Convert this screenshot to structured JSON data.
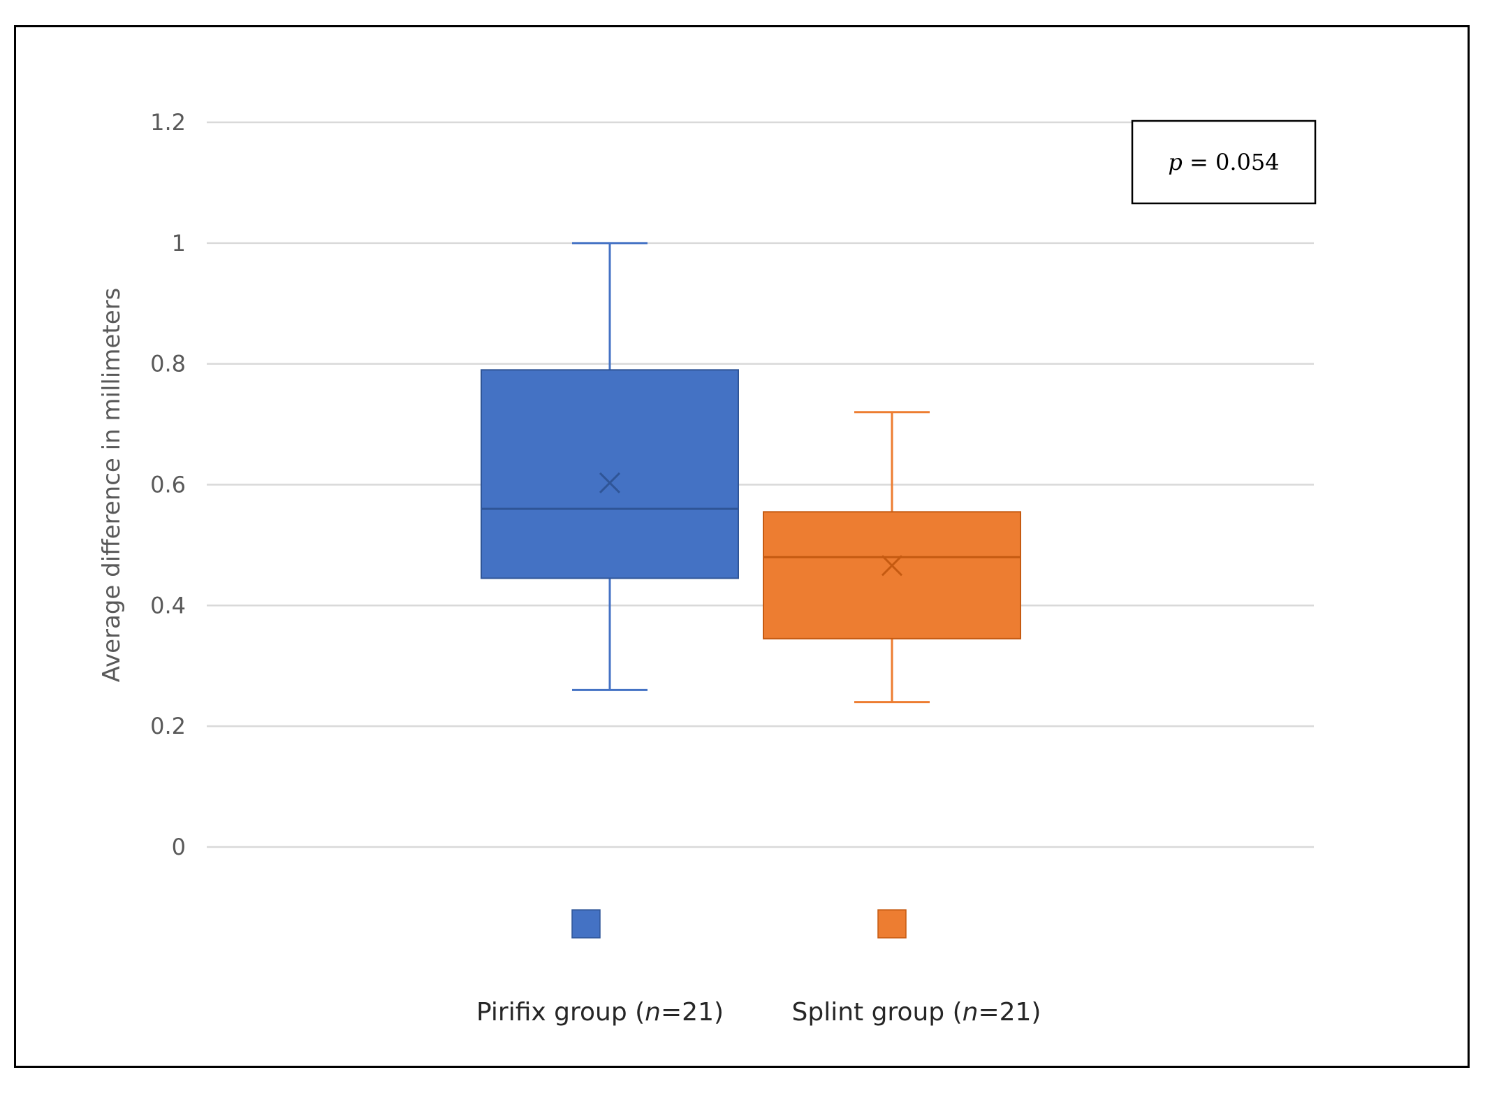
{
  "chart_data": {
    "type": "box",
    "title": "",
    "xlabel": "",
    "ylabel": "Average difference in millimeters",
    "ylim": [
      0,
      1.2
    ],
    "yticks": [
      "0",
      "0.2",
      "0.4",
      "0.6",
      "0.8",
      "1",
      "1.2"
    ],
    "grid": true,
    "legend_position": "bottom",
    "annotation": {
      "prefix": "p",
      "text": " = 0.054"
    },
    "series": [
      {
        "name": "Pirifix group (n=21)",
        "legend_parts": [
          "Pirifix group (",
          "n",
          "=21)"
        ],
        "color": "#4472C4",
        "min": 0.26,
        "q1": 0.445,
        "median": 0.56,
        "q3": 0.79,
        "max": 1.0,
        "mean": 0.603
      },
      {
        "name": "Splint group (n=21)",
        "legend_parts": [
          "Splint group (",
          "n",
          "=21)"
        ],
        "color": "#ED7D31",
        "min": 0.24,
        "q1": 0.345,
        "median": 0.48,
        "q3": 0.555,
        "max": 0.72,
        "mean": 0.466
      }
    ]
  }
}
